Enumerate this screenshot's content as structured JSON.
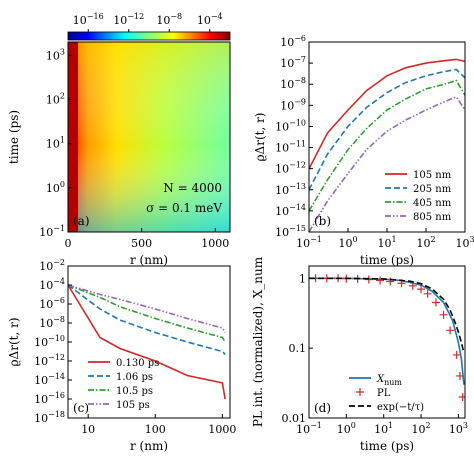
{
  "chart_data": [
    {
      "panel": "(a)",
      "type": "heatmap",
      "xlabel": "r (nm)",
      "ylabel": "time (ps)",
      "xlim": [
        0,
        1100
      ],
      "ylim": [
        0.1,
        2000
      ],
      "yscale": "log",
      "xticks": [
        "0",
        "500",
        "1000"
      ],
      "yticks": [
        "10^-1",
        "10^0",
        "10^1",
        "10^2",
        "10^3"
      ],
      "colorbar": {
        "scale": "log",
        "range": [
          1e-18,
          0.01
        ],
        "ticks": [
          "10^-16",
          "10^-12",
          "10^-8",
          "10^-4"
        ],
        "colormap": "jet"
      },
      "annotations": [
        "N = 4000",
        "σ = 0.1 meV"
      ]
    },
    {
      "panel": "(b)",
      "type": "line",
      "xlabel": "time (ps)",
      "ylabel": "ϱΔr(t, r)",
      "xscale": "log",
      "yscale": "log",
      "xlim": [
        0.1,
        1000
      ],
      "ylim": [
        1e-15,
        1e-06
      ],
      "xticks": [
        "10^-1",
        "10^0",
        "10^1",
        "10^2",
        "10^3"
      ],
      "yticks": [
        "10^-15",
        "10^-14",
        "10^-13",
        "10^-12",
        "10^-11",
        "10^-10",
        "10^-9",
        "10^-8",
        "10^-7",
        "10^-6"
      ],
      "legend_loc": "lower-right",
      "x": [
        0.1,
        0.3,
        1,
        3,
        10,
        30,
        100,
        300,
        600,
        1000
      ],
      "series": [
        {
          "name": "105 nm",
          "color": "#d62728",
          "dash": "solid",
          "values": [
            1e-12,
            5e-11,
            6e-10,
            5e-09,
            2.5e-08,
            6e-08,
            1e-07,
            1.3e-07,
            1.5e-07,
            1.2e-07
          ]
        },
        {
          "name": "205 nm",
          "color": "#1f77b4",
          "dash": "dashed",
          "values": [
            1e-13,
            5e-12,
            1e-10,
            8e-10,
            4e-09,
            1.2e-08,
            2.5e-08,
            4e-08,
            5e-08,
            2e-08
          ]
        },
        {
          "name": "405 nm",
          "color": "#2ca02c",
          "dash": "dashdot",
          "values": [
            1e-14,
            3e-13,
            8e-12,
            8e-11,
            6e-10,
            2e-09,
            6e-09,
            1e-08,
            1.5e-08,
            3e-09
          ]
        },
        {
          "name": "805 nm",
          "color": "#9467bd",
          "dash": "dashdotdot",
          "values": [
            1e-15,
            3e-14,
            6e-13,
            8e-12,
            6e-11,
            2e-10,
            6e-10,
            1.5e-09,
            2.5e-09,
            6e-10
          ]
        }
      ]
    },
    {
      "panel": "(c)",
      "type": "line",
      "xlabel": "r (nm)",
      "ylabel": "ϱΔr(t, r)",
      "xscale": "log",
      "yscale": "log",
      "xlim": [
        5,
        1300
      ],
      "ylim": [
        1e-18,
        0.01
      ],
      "xticks": [
        "10",
        "100",
        "1000"
      ],
      "yticks": [
        "10^-18",
        "10^-16",
        "10^-14",
        "10^-12",
        "10^-10",
        "10^-8",
        "10^-6",
        "10^-4",
        "10^-2"
      ],
      "legend_loc": "lower-left",
      "x": [
        5,
        15,
        30,
        100,
        300,
        1000,
        1100
      ],
      "series": [
        {
          "name": "0.130 ps",
          "color": "#d62728",
          "dash": "solid",
          "values": [
            0.0001,
            3e-10,
            2e-11,
            1e-12,
            3e-14,
            5e-15,
            1e-16
          ]
        },
        {
          "name": "1.06 ps",
          "color": "#1f77b4",
          "dash": "dashed",
          "values": [
            0.0001,
            3e-07,
            2e-08,
            1e-09,
            1e-10,
            1e-11,
            5e-12
          ]
        },
        {
          "name": "10.5 ps",
          "color": "#2ca02c",
          "dash": "dashdot",
          "values": [
            0.0001,
            5e-06,
            5e-07,
            3e-08,
            3e-09,
            3e-10,
            1e-10
          ]
        },
        {
          "name": "105 ps",
          "color": "#9467bd",
          "dash": "dashdotdot",
          "values": [
            0.0001,
            1e-05,
            3e-06,
            3e-07,
            3e-08,
            3e-09,
            1e-09
          ]
        }
      ]
    },
    {
      "panel": "(d)",
      "type": "line",
      "xlabel": "time (ps)",
      "ylabel": "PL int. (normalized), X_num",
      "xscale": "log",
      "yscale": "log",
      "xlim": [
        0.1,
        1500
      ],
      "ylim": [
        0.01,
        1.5
      ],
      "xticks": [
        "10^-1",
        "10^0",
        "10^1",
        "10^2",
        "10^3"
      ],
      "yticks": [
        "0.01",
        "0.1",
        "1"
      ],
      "legend_loc": "lower-left",
      "series": [
        {
          "name": "X_num",
          "color": "#1f77b4",
          "dash": "solid",
          "x": [
            0.1,
            1,
            10,
            30,
            100,
            200,
            400,
            700,
            1000,
            1200,
            1400
          ],
          "values": [
            1,
            1,
            0.97,
            0.93,
            0.8,
            0.65,
            0.45,
            0.25,
            0.12,
            0.07,
            0.03
          ]
        },
        {
          "name": "PL",
          "color": "#d62728",
          "marker": "+",
          "x": [
            0.15,
            0.3,
            0.6,
            1,
            2,
            4,
            8,
            15,
            30,
            60,
            100,
            150,
            250,
            400,
            600,
            900,
            1100,
            1300
          ],
          "values": [
            1,
            1,
            1,
            0.99,
            0.98,
            0.96,
            0.93,
            0.9,
            0.85,
            0.78,
            0.7,
            0.6,
            0.45,
            0.3,
            0.18,
            0.08,
            0.04,
            0.02
          ]
        },
        {
          "name": "exp(−t/τ)",
          "color": "#000000",
          "dash": "dashed",
          "x": [
            0.1,
            1,
            10,
            50,
            100,
            200,
            400,
            600,
            800,
            1000,
            1200,
            1400
          ],
          "values": [
            1,
            1,
            0.98,
            0.91,
            0.84,
            0.7,
            0.5,
            0.35,
            0.24,
            0.17,
            0.12,
            0.085
          ]
        }
      ]
    }
  ],
  "colors": {
    "frame": "#000000"
  }
}
